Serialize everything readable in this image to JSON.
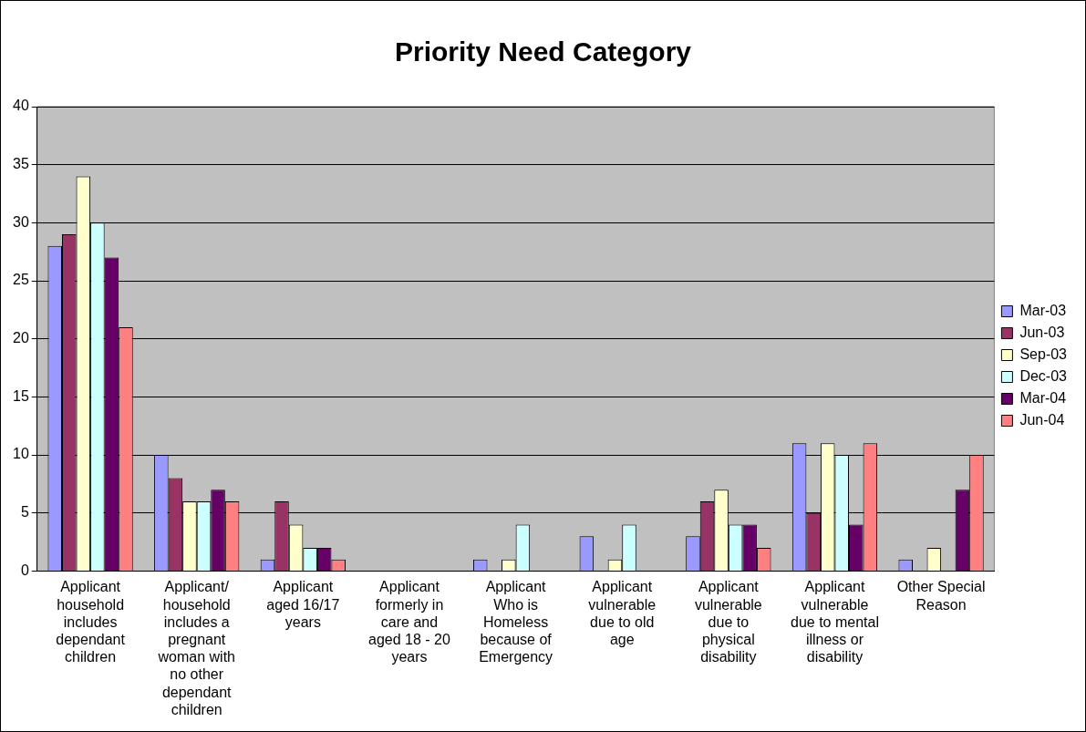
{
  "chart_data": {
    "type": "bar",
    "title": "Priority Need Category",
    "categories": [
      "Applicant household includes dependant children",
      "Applicant/ household includes a pregnant woman with no other dependant children",
      "Applicant aged 16/17 years",
      "Applicant formerly in care and aged 18 - 20 years",
      "Applicant Who is Homeless because of Emergency",
      "Applicant vulnerable due to old age",
      "Applicant vulnerable due to physical disability",
      "Applicant vulnerable due to mental illness or disability",
      "Other Special Reason"
    ],
    "series": [
      {
        "name": "Mar-03",
        "color": "#9999ff",
        "values": [
          28,
          10,
          1,
          0,
          1,
          3,
          3,
          11,
          1
        ]
      },
      {
        "name": "Jun-03",
        "color": "#993366",
        "values": [
          29,
          8,
          6,
          0,
          0,
          0,
          6,
          5,
          0
        ]
      },
      {
        "name": "Sep-03",
        "color": "#ffffcc",
        "values": [
          34,
          6,
          4,
          0,
          1,
          1,
          7,
          11,
          2
        ]
      },
      {
        "name": "Dec-03",
        "color": "#ccffff",
        "values": [
          30,
          6,
          2,
          0,
          4,
          4,
          4,
          10,
          0
        ]
      },
      {
        "name": "Mar-04",
        "color": "#660066",
        "values": [
          27,
          7,
          2,
          0,
          0,
          0,
          4,
          4,
          7
        ]
      },
      {
        "name": "Jun-04",
        "color": "#ff8080",
        "values": [
          21,
          6,
          1,
          0,
          0,
          0,
          2,
          11,
          10
        ]
      }
    ],
    "ylim": [
      0,
      40
    ],
    "yticks": [
      0,
      5,
      10,
      15,
      20,
      25,
      30,
      35,
      40
    ],
    "grid": "y",
    "legend": "right"
  }
}
